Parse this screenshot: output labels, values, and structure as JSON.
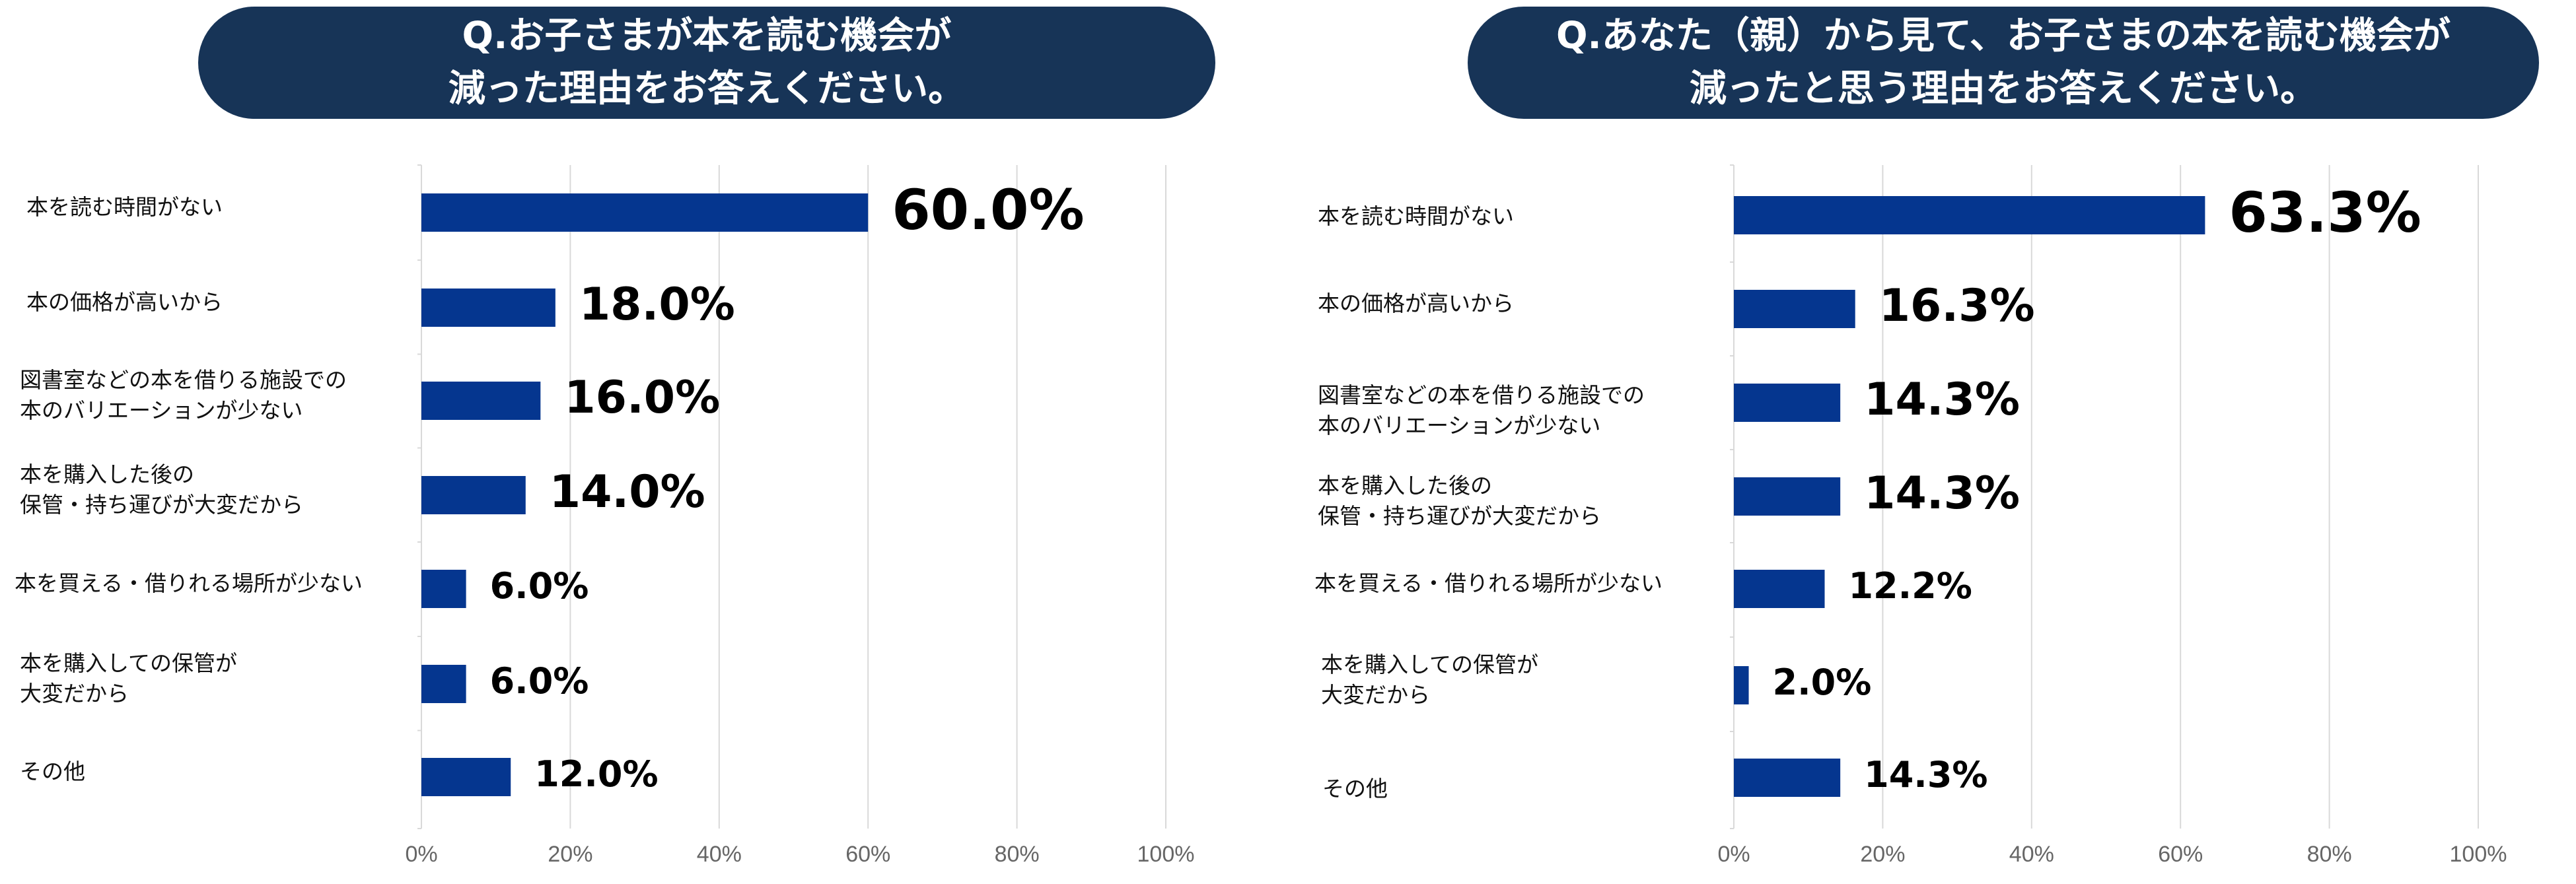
{
  "colors": {
    "bar": "#05368f",
    "title_bg": "#173457",
    "grid": "#d9d9d9"
  },
  "chart_data": [
    {
      "type": "bar",
      "orientation": "horizontal",
      "title": "Q.お子さまが本を読む機会が\n減った理由をお答えください。",
      "categories": [
        "本を読む時間がない",
        "本の価格が高いから",
        "図書室などの本を借りる施設での\n本のバリエーションが少ない",
        "本を購入した後の\n保管・持ち運びが大変だから",
        "本を買える・借りれる場所が少ない",
        "本を購入しての保管が\n大変だから",
        "その他"
      ],
      "values": [
        60.0,
        18.0,
        16.0,
        14.0,
        6.0,
        6.0,
        12.0
      ],
      "value_labels": [
        "60.0%",
        "18.0%",
        "16.0%",
        "14.0%",
        "6.0%",
        "6.0%",
        "12.0%"
      ],
      "xlim": [
        0,
        100
      ],
      "x_ticks": [
        "0%",
        "20%",
        "40%",
        "60%",
        "80%",
        "100%"
      ],
      "grid": true,
      "legend": "none"
    },
    {
      "type": "bar",
      "orientation": "horizontal",
      "title": "Q.あなた（親）から見て、お子さまの本を読む機会が\n減ったと思う理由をお答えください。",
      "categories": [
        "本を読む時間がない",
        "本の価格が高いから",
        "図書室などの本を借りる施設での\n本のバリエーションが少ない",
        "本を購入した後の\n保管・持ち運びが大変だから",
        "本を買える・借りれる場所が少ない",
        "本を購入しての保管が\n大変だから",
        "その他"
      ],
      "values": [
        63.3,
        16.3,
        14.3,
        14.3,
        12.2,
        2.0,
        14.3
      ],
      "value_labels": [
        "63.3%",
        "16.3%",
        "14.3%",
        "14.3%",
        "12.2%",
        "2.0%",
        "14.3%"
      ],
      "xlim": [
        0,
        100
      ],
      "x_ticks": [
        "0%",
        "20%",
        "40%",
        "60%",
        "80%",
        "100%"
      ],
      "grid": true,
      "legend": "none"
    }
  ]
}
